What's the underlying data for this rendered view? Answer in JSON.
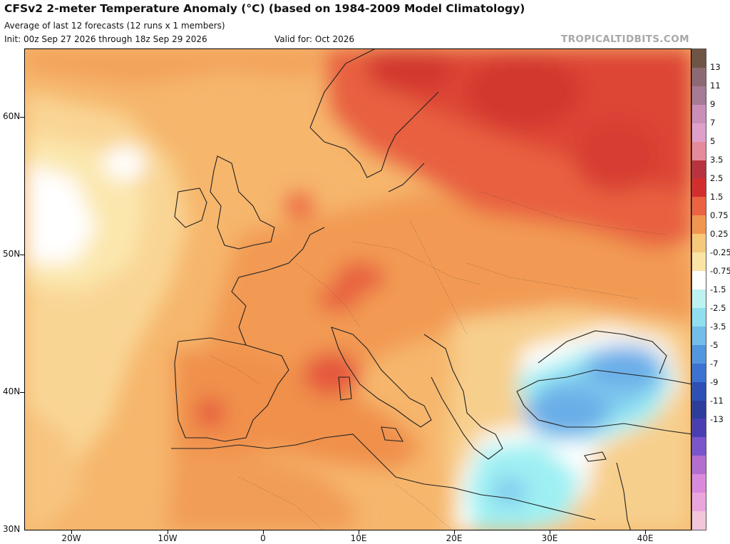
{
  "header": {
    "title": "CFSv2 2-meter Temperature Anomaly (°C) (based on 1984-2009 Model Climatology)",
    "subtitle": "Average of last 12 forecasts (12 runs x 1 members)",
    "init": "Init: 00z Sep 27 2026 through 18z Sep 29 2026",
    "valid": "Valid for: Oct 2026",
    "credit": "TROPICALTIDBITS.COM"
  },
  "map": {
    "region": "Europe / North Africa",
    "lat_labels": [
      "60N",
      "50N",
      "40N",
      "30N"
    ],
    "lon_labels": [
      "20W",
      "10W",
      "0",
      "10E",
      "20E",
      "30E",
      "40E"
    ]
  },
  "legend": {
    "unit": "°C",
    "labels": [
      "13",
      "11",
      "9",
      "7",
      "5",
      "3.5",
      "2.5",
      "1.5",
      "0.75",
      "0.25",
      "-0.25",
      "-0.75",
      "-1.5",
      "-2.5",
      "-3.5",
      "-5",
      "-7",
      "-9",
      "-11",
      "-13"
    ],
    "bins": [
      "#6e5546",
      "#8d6a73",
      "#a77a95",
      "#c98fb8",
      "#de9fcb",
      "#e58a9d",
      "#b83240",
      "#d32e2e",
      "#eb6342",
      "#f1964f",
      "#f5c979",
      "#f9e4a5",
      "#ffffff",
      "#bdf2f2",
      "#8fdff0",
      "#72bde9",
      "#5296df",
      "#3c72d2",
      "#2d4fb6",
      "#2c3d9b",
      "#4a3fb2",
      "#7a55cc",
      "#b46ecf",
      "#d98adc",
      "#eaa6dc",
      "#f3c6dc"
    ]
  },
  "colors": {
    "cold_anomaly_blue": "#6aaee8",
    "light_cyan": "#9ef0f3",
    "warm_tan": "#f7c580",
    "warm_orange": "#f1964f",
    "hot_red": "#dd4436"
  }
}
